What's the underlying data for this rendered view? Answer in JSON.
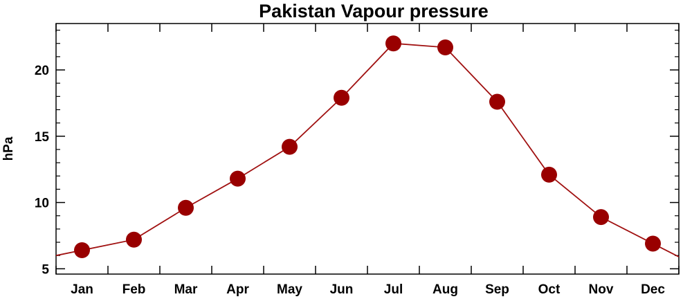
{
  "chart_data": {
    "type": "line",
    "title": "Pakistan Vapour pressure",
    "xlabel": "",
    "ylabel": "hPa",
    "categories": [
      "Jan",
      "Feb",
      "Mar",
      "Apr",
      "May",
      "Jun",
      "Jul",
      "Aug",
      "Sep",
      "Oct",
      "Nov",
      "Dec"
    ],
    "values": [
      6.4,
      7.2,
      9.6,
      11.8,
      14.2,
      17.9,
      22.0,
      21.7,
      17.6,
      12.1,
      8.9,
      6.9
    ],
    "ylim": [
      4.6,
      23.5
    ],
    "yticks": [
      5,
      10,
      15,
      20
    ],
    "grid": false,
    "colors": {
      "line": "#a01010",
      "marker": "#990000",
      "axis": "#000000"
    },
    "line_extends_to_edges": true
  }
}
